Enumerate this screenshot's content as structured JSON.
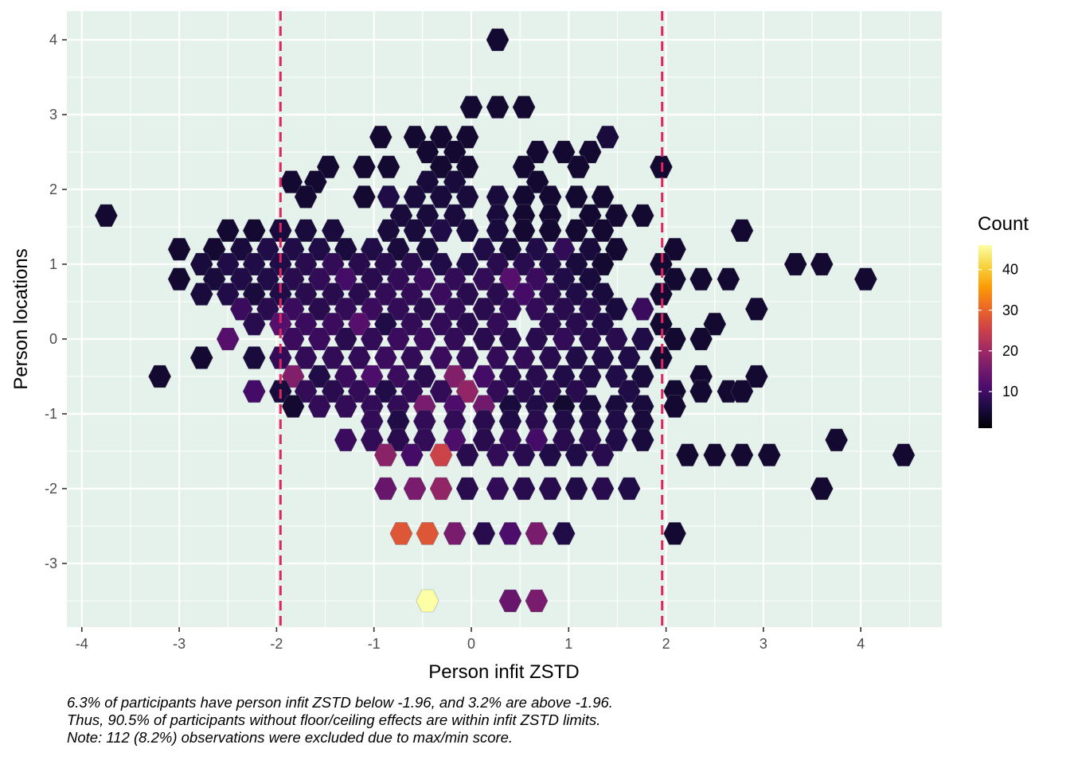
{
  "chart_data": {
    "type": "hexbin",
    "xlabel": "Person infit ZSTD",
    "ylabel": "Person locations",
    "xlim": [
      -4.1,
      4.85
    ],
    "ylim": [
      -3.85,
      4.4
    ],
    "x_ticks": [
      -4,
      -3,
      -2,
      -1,
      0,
      1,
      2,
      3,
      4
    ],
    "y_ticks": [
      -3,
      -2,
      -1,
      0,
      1,
      2,
      3,
      4
    ],
    "grid": true,
    "panel_background": "#e5f2eb",
    "reference_lines_x": [
      -1.96,
      1.96
    ],
    "reference_line_color": "#e0245e",
    "legend": {
      "title": "Count",
      "position": "right",
      "ticks": [
        10,
        20,
        30,
        40
      ],
      "min": 1,
      "max": 46,
      "palette": "inferno"
    },
    "hex_cols": [
      -3.8,
      -3.6,
      -3.4,
      -3.2,
      -3.0,
      -2.8,
      -2.6,
      -2.4,
      -2.2,
      -2.0,
      -1.8,
      -1.6,
      -1.4,
      -1.2,
      -1.0,
      -0.8,
      -0.6,
      -0.4,
      -0.2,
      0.0,
      0.2,
      0.4,
      0.6,
      0.8,
      1.0,
      1.2,
      1.4,
      1.6,
      1.8,
      2.0,
      2.2,
      2.4,
      2.6,
      2.8,
      3.0,
      3.2,
      3.4,
      3.6,
      3.8,
      4.0,
      4.2,
      4.4
    ],
    "hex_rows": [
      4.0,
      3.8,
      3.6,
      3.4,
      3.2,
      3.0,
      2.8,
      2.6,
      2.4,
      2.2,
      2.0,
      1.8,
      1.6,
      1.4,
      1.2,
      1.0,
      0.8,
      0.6,
      0.4,
      0.2,
      0.0,
      -0.2,
      -0.4,
      -0.6,
      -0.8,
      -1.0,
      -1.2,
      -1.4,
      -1.6,
      -1.8,
      -2.0,
      -2.2,
      -2.4,
      -2.6,
      -2.8,
      -3.0,
      -3.2,
      -3.4,
      -3.6,
      -3.8
    ],
    "bins": [
      [
        0.27,
        4.0,
        2
      ],
      [
        0.0,
        3.1,
        2
      ],
      [
        0.27,
        3.1,
        2
      ],
      [
        0.54,
        3.1,
        2
      ],
      [
        -0.93,
        2.7,
        2
      ],
      [
        -0.58,
        2.7,
        2
      ],
      [
        -0.31,
        2.7,
        2
      ],
      [
        -0.04,
        2.7,
        2
      ],
      [
        1.4,
        2.7,
        3
      ],
      [
        -0.45,
        2.5,
        2
      ],
      [
        -0.17,
        2.5,
        2
      ],
      [
        0.68,
        2.5,
        2
      ],
      [
        0.95,
        2.5,
        2
      ],
      [
        1.22,
        2.5,
        2
      ],
      [
        -1.47,
        2.3,
        2
      ],
      [
        -1.1,
        2.3,
        2
      ],
      [
        -0.85,
        2.3,
        2
      ],
      [
        -0.31,
        2.3,
        2
      ],
      [
        -0.04,
        2.3,
        2
      ],
      [
        0.54,
        2.3,
        2
      ],
      [
        1.1,
        2.3,
        2
      ],
      [
        1.95,
        2.3,
        2
      ],
      [
        -1.85,
        2.1,
        2
      ],
      [
        -1.6,
        2.1,
        2
      ],
      [
        -0.45,
        2.1,
        3
      ],
      [
        -0.17,
        2.1,
        3
      ],
      [
        0.68,
        2.1,
        2
      ],
      [
        -1.7,
        1.9,
        2
      ],
      [
        -1.1,
        1.9,
        2
      ],
      [
        -0.85,
        1.9,
        4
      ],
      [
        -0.58,
        1.9,
        3
      ],
      [
        -0.31,
        1.9,
        3
      ],
      [
        -0.04,
        1.9,
        3
      ],
      [
        0.27,
        1.9,
        3
      ],
      [
        0.54,
        1.9,
        2
      ],
      [
        0.81,
        1.9,
        2
      ],
      [
        1.08,
        1.9,
        2
      ],
      [
        1.35,
        1.9,
        2
      ],
      [
        -3.75,
        1.65,
        2
      ],
      [
        -0.72,
        1.65,
        3
      ],
      [
        -0.45,
        1.65,
        3
      ],
      [
        -0.17,
        1.65,
        3
      ],
      [
        0.27,
        1.65,
        3
      ],
      [
        0.54,
        1.65,
        2
      ],
      [
        0.81,
        1.65,
        2
      ],
      [
        1.22,
        1.65,
        2
      ],
      [
        1.49,
        1.65,
        2
      ],
      [
        1.76,
        1.65,
        2
      ],
      [
        -2.5,
        1.45,
        2
      ],
      [
        -2.23,
        1.45,
        2
      ],
      [
        -1.96,
        1.45,
        3
      ],
      [
        -1.7,
        1.45,
        3
      ],
      [
        -1.42,
        1.45,
        3
      ],
      [
        -0.85,
        1.45,
        3
      ],
      [
        -0.58,
        1.45,
        3
      ],
      [
        -0.31,
        1.45,
        4
      ],
      [
        -0.04,
        1.45,
        3
      ],
      [
        0.27,
        1.45,
        3
      ],
      [
        0.54,
        1.45,
        2
      ],
      [
        0.81,
        1.45,
        2
      ],
      [
        1.08,
        1.45,
        2
      ],
      [
        1.35,
        1.45,
        2
      ],
      [
        2.78,
        1.45,
        2
      ],
      [
        -3.0,
        1.2,
        2
      ],
      [
        -2.64,
        1.2,
        2
      ],
      [
        -2.36,
        1.2,
        3
      ],
      [
        -2.09,
        1.2,
        4
      ],
      [
        -1.83,
        1.2,
        4
      ],
      [
        -1.56,
        1.2,
        4
      ],
      [
        -1.29,
        1.2,
        3
      ],
      [
        -1.02,
        1.2,
        4
      ],
      [
        -0.75,
        1.2,
        3
      ],
      [
        -0.45,
        1.2,
        3
      ],
      [
        0.13,
        1.2,
        4
      ],
      [
        0.4,
        1.2,
        3
      ],
      [
        0.67,
        1.2,
        4
      ],
      [
        0.95,
        1.2,
        6
      ],
      [
        1.22,
        1.2,
        3
      ],
      [
        1.49,
        1.2,
        2
      ],
      [
        2.09,
        1.2,
        2
      ],
      [
        -2.77,
        1.0,
        3
      ],
      [
        -2.5,
        1.0,
        4
      ],
      [
        -2.23,
        1.0,
        4
      ],
      [
        -1.96,
        1.0,
        4
      ],
      [
        -1.7,
        1.0,
        5
      ],
      [
        -1.42,
        1.0,
        6
      ],
      [
        -1.15,
        1.0,
        5
      ],
      [
        -0.88,
        1.0,
        5
      ],
      [
        -0.61,
        1.0,
        5
      ],
      [
        -0.31,
        1.0,
        4
      ],
      [
        -0.04,
        1.0,
        4
      ],
      [
        0.27,
        1.0,
        5
      ],
      [
        0.54,
        1.0,
        5
      ],
      [
        0.81,
        1.0,
        4
      ],
      [
        1.08,
        1.0,
        3
      ],
      [
        1.35,
        1.0,
        2
      ],
      [
        1.95,
        1.0,
        2
      ],
      [
        3.33,
        1.0,
        2
      ],
      [
        3.6,
        1.0,
        2
      ],
      [
        -3.0,
        0.8,
        2
      ],
      [
        -2.64,
        0.8,
        3
      ],
      [
        -2.36,
        0.8,
        4
      ],
      [
        -2.09,
        0.8,
        4
      ],
      [
        -1.83,
        0.8,
        5
      ],
      [
        -1.56,
        0.8,
        6
      ],
      [
        -1.29,
        0.8,
        8
      ],
      [
        -1.02,
        0.8,
        5
      ],
      [
        -0.75,
        0.8,
        6
      ],
      [
        -0.48,
        0.8,
        7
      ],
      [
        -0.17,
        0.8,
        6
      ],
      [
        0.13,
        0.8,
        6
      ],
      [
        0.4,
        0.8,
        10
      ],
      [
        0.67,
        0.8,
        7
      ],
      [
        0.95,
        0.8,
        4
      ],
      [
        1.22,
        0.8,
        3
      ],
      [
        2.09,
        0.8,
        2
      ],
      [
        2.36,
        0.8,
        2
      ],
      [
        2.64,
        0.8,
        2
      ],
      [
        4.05,
        0.8,
        2
      ],
      [
        -2.77,
        0.6,
        3
      ],
      [
        -2.5,
        0.6,
        4
      ],
      [
        -2.23,
        0.6,
        3
      ],
      [
        -1.96,
        0.6,
        4
      ],
      [
        -1.7,
        0.6,
        5
      ],
      [
        -1.42,
        0.6,
        5
      ],
      [
        -1.15,
        0.6,
        5
      ],
      [
        -0.88,
        0.6,
        6
      ],
      [
        -0.61,
        0.6,
        6
      ],
      [
        -0.31,
        0.6,
        7
      ],
      [
        -0.04,
        0.6,
        5
      ],
      [
        0.27,
        0.6,
        5
      ],
      [
        0.54,
        0.6,
        8
      ],
      [
        0.81,
        0.6,
        5
      ],
      [
        1.08,
        0.6,
        4
      ],
      [
        1.35,
        0.6,
        3
      ],
      [
        1.95,
        0.6,
        2
      ],
      [
        -2.36,
        0.4,
        7
      ],
      [
        -2.09,
        0.4,
        5
      ],
      [
        -1.83,
        0.4,
        7
      ],
      [
        -1.56,
        0.4,
        5
      ],
      [
        -1.29,
        0.4,
        6
      ],
      [
        -1.02,
        0.4,
        7
      ],
      [
        -0.75,
        0.4,
        6
      ],
      [
        -0.48,
        0.4,
        5
      ],
      [
        -0.17,
        0.4,
        6
      ],
      [
        0.13,
        0.4,
        5
      ],
      [
        0.4,
        0.4,
        6
      ],
      [
        0.67,
        0.4,
        6
      ],
      [
        0.95,
        0.4,
        5
      ],
      [
        1.22,
        0.4,
        5
      ],
      [
        1.49,
        0.4,
        3
      ],
      [
        1.76,
        0.4,
        7
      ],
      [
        2.93,
        0.4,
        2
      ],
      [
        -2.23,
        0.2,
        5
      ],
      [
        -1.96,
        0.2,
        10
      ],
      [
        -1.7,
        0.2,
        7
      ],
      [
        -1.42,
        0.2,
        7
      ],
      [
        -1.15,
        0.2,
        10
      ],
      [
        -0.88,
        0.2,
        4
      ],
      [
        -0.61,
        0.2,
        6
      ],
      [
        -0.31,
        0.2,
        6
      ],
      [
        -0.04,
        0.2,
        5
      ],
      [
        0.27,
        0.2,
        6
      ],
      [
        0.81,
        0.2,
        5
      ],
      [
        1.08,
        0.2,
        5
      ],
      [
        1.35,
        0.2,
        4
      ],
      [
        1.95,
        0.2,
        2
      ],
      [
        2.5,
        0.2,
        2
      ],
      [
        -2.5,
        0.0,
        10
      ],
      [
        -1.83,
        0.0,
        7
      ],
      [
        -1.56,
        0.0,
        7
      ],
      [
        -1.29,
        0.0,
        5
      ],
      [
        -1.02,
        0.0,
        6
      ],
      [
        -0.75,
        0.0,
        7
      ],
      [
        -0.48,
        0.0,
        7
      ],
      [
        -0.17,
        0.0,
        6
      ],
      [
        0.13,
        0.0,
        5
      ],
      [
        0.4,
        0.0,
        5
      ],
      [
        0.67,
        0.0,
        5
      ],
      [
        0.95,
        0.0,
        6
      ],
      [
        1.22,
        0.0,
        5
      ],
      [
        1.49,
        0.0,
        5
      ],
      [
        1.76,
        0.0,
        4
      ],
      [
        2.09,
        0.0,
        2
      ],
      [
        2.36,
        0.0,
        2
      ],
      [
        -2.77,
        -0.25,
        2
      ],
      [
        -2.23,
        -0.25,
        3
      ],
      [
        -1.96,
        -0.25,
        6
      ],
      [
        -1.7,
        -0.25,
        6
      ],
      [
        -1.42,
        -0.25,
        6
      ],
      [
        -1.15,
        -0.25,
        6
      ],
      [
        -0.88,
        -0.25,
        7
      ],
      [
        -0.61,
        -0.25,
        6
      ],
      [
        -0.31,
        -0.25,
        7
      ],
      [
        -0.04,
        -0.25,
        6
      ],
      [
        0.27,
        -0.25,
        6
      ],
      [
        0.54,
        -0.25,
        6
      ],
      [
        0.81,
        -0.25,
        5
      ],
      [
        1.08,
        -0.25,
        4
      ],
      [
        1.35,
        -0.25,
        4
      ],
      [
        1.62,
        -0.25,
        4
      ],
      [
        1.95,
        -0.25,
        2
      ],
      [
        -3.2,
        -0.5,
        2
      ],
      [
        -1.83,
        -0.5,
        15
      ],
      [
        -1.56,
        -0.5,
        4
      ],
      [
        -1.29,
        -0.5,
        7
      ],
      [
        -1.02,
        -0.5,
        9
      ],
      [
        -0.75,
        -0.5,
        7
      ],
      [
        -0.48,
        -0.5,
        5
      ],
      [
        -0.17,
        -0.5,
        15
      ],
      [
        0.13,
        -0.5,
        8
      ],
      [
        0.4,
        -0.5,
        5
      ],
      [
        0.67,
        -0.5,
        5
      ],
      [
        0.95,
        -0.5,
        4
      ],
      [
        1.22,
        -0.5,
        4
      ],
      [
        1.49,
        -0.5,
        4
      ],
      [
        1.76,
        -0.5,
        3
      ],
      [
        2.36,
        -0.5,
        2
      ],
      [
        2.93,
        -0.5,
        2
      ],
      [
        -2.23,
        -0.7,
        8
      ],
      [
        -1.96,
        -0.7,
        3
      ],
      [
        -1.7,
        -0.7,
        6
      ],
      [
        -1.42,
        -0.7,
        5
      ],
      [
        -1.15,
        -0.7,
        6
      ],
      [
        -0.88,
        -0.7,
        4
      ],
      [
        -0.61,
        -0.7,
        6
      ],
      [
        -0.31,
        -0.7,
        6
      ],
      [
        -0.04,
        -0.7,
        17
      ],
      [
        0.27,
        -0.7,
        6
      ],
      [
        0.54,
        -0.7,
        5
      ],
      [
        0.81,
        -0.7,
        5
      ],
      [
        1.08,
        -0.7,
        5
      ],
      [
        1.62,
        -0.7,
        4
      ],
      [
        2.09,
        -0.7,
        2
      ],
      [
        2.36,
        -0.7,
        2
      ],
      [
        2.64,
        -0.7,
        2
      ],
      [
        2.78,
        -0.7,
        2
      ],
      [
        -1.83,
        -0.9,
        2
      ],
      [
        -1.56,
        -0.9,
        6
      ],
      [
        -1.29,
        -0.9,
        6
      ],
      [
        -1.02,
        -0.9,
        6
      ],
      [
        -0.75,
        -0.9,
        6
      ],
      [
        -0.48,
        -0.9,
        14
      ],
      [
        -0.17,
        -0.9,
        9
      ],
      [
        0.13,
        -0.9,
        13
      ],
      [
        0.4,
        -0.9,
        3
      ],
      [
        0.67,
        -0.9,
        4
      ],
      [
        0.95,
        -0.9,
        2
      ],
      [
        1.22,
        -0.9,
        3
      ],
      [
        1.49,
        -0.9,
        3
      ],
      [
        1.76,
        -0.9,
        3
      ],
      [
        2.09,
        -0.9,
        2
      ],
      [
        -1.02,
        -1.1,
        6
      ],
      [
        -0.75,
        -1.1,
        4
      ],
      [
        -0.48,
        -1.1,
        6
      ],
      [
        -0.17,
        -1.1,
        6
      ],
      [
        0.13,
        -1.1,
        5
      ],
      [
        0.4,
        -1.1,
        4
      ],
      [
        0.67,
        -1.1,
        5
      ],
      [
        0.95,
        -1.1,
        4
      ],
      [
        1.22,
        -1.1,
        4
      ],
      [
        1.49,
        -1.1,
        4
      ],
      [
        1.76,
        -1.1,
        3
      ],
      [
        -1.29,
        -1.35,
        7
      ],
      [
        -1.02,
        -1.35,
        6
      ],
      [
        -0.75,
        -1.35,
        5
      ],
      [
        -0.48,
        -1.35,
        6
      ],
      [
        -0.17,
        -1.35,
        9
      ],
      [
        0.13,
        -1.35,
        5
      ],
      [
        0.4,
        -1.35,
        6
      ],
      [
        0.67,
        -1.35,
        8
      ],
      [
        0.95,
        -1.35,
        5
      ],
      [
        1.22,
        -1.35,
        5
      ],
      [
        1.49,
        -1.35,
        4
      ],
      [
        1.76,
        -1.35,
        3
      ],
      [
        3.75,
        -1.35,
        2
      ],
      [
        -0.88,
        -1.55,
        16
      ],
      [
        -0.61,
        -1.55,
        8
      ],
      [
        -0.31,
        -1.55,
        24
      ],
      [
        -0.04,
        -1.55,
        5
      ],
      [
        0.27,
        -1.55,
        6
      ],
      [
        0.54,
        -1.55,
        5
      ],
      [
        0.81,
        -1.55,
        4
      ],
      [
        1.08,
        -1.55,
        4
      ],
      [
        1.35,
        -1.55,
        5
      ],
      [
        2.22,
        -1.55,
        2
      ],
      [
        2.5,
        -1.55,
        2
      ],
      [
        2.78,
        -1.55,
        2
      ],
      [
        3.06,
        -1.55,
        2
      ],
      [
        4.44,
        -1.55,
        2
      ],
      [
        -0.88,
        -2.0,
        12
      ],
      [
        -0.58,
        -2.0,
        14
      ],
      [
        -0.31,
        -2.0,
        17
      ],
      [
        -0.04,
        -2.0,
        5
      ],
      [
        0.27,
        -2.0,
        6
      ],
      [
        0.54,
        -2.0,
        5
      ],
      [
        0.81,
        -2.0,
        5
      ],
      [
        1.08,
        -2.0,
        4
      ],
      [
        1.35,
        -2.0,
        5
      ],
      [
        1.62,
        -2.0,
        4
      ],
      [
        3.6,
        -2.0,
        2
      ],
      [
        -0.72,
        -2.6,
        27
      ],
      [
        -0.45,
        -2.6,
        27
      ],
      [
        -0.17,
        -2.6,
        14
      ],
      [
        0.13,
        -2.6,
        5
      ],
      [
        0.4,
        -2.6,
        9
      ],
      [
        0.67,
        -2.6,
        14
      ],
      [
        0.95,
        -2.6,
        4
      ],
      [
        2.09,
        -2.6,
        2
      ],
      [
        -0.45,
        -3.5,
        46
      ],
      [
        0.4,
        -3.5,
        12
      ],
      [
        0.67,
        -3.5,
        14
      ]
    ]
  },
  "caption": [
    "6.3% of participants have person infit ZSTD below -1.96, and 3.2% are above -1.96.",
    "Thus, 90.5% of participants without floor/ceiling effects are within infit ZSTD limits.",
    "Note: 112 (8.2%) observations were excluded due to max/min score."
  ]
}
